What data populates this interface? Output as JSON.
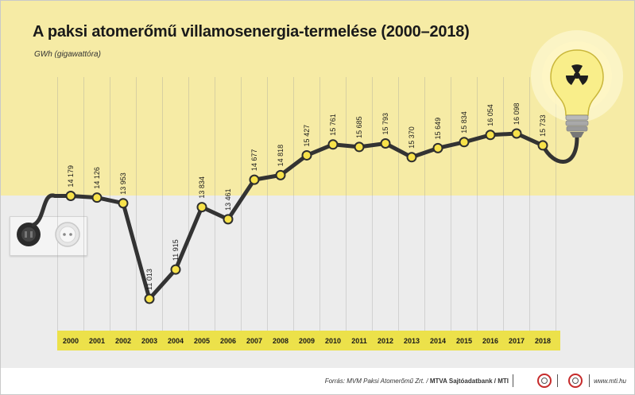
{
  "title": "A paksi atomerőmű villamosenergia-termelése (2000–2018)",
  "unit_label": "GWh (gigawattóra)",
  "footer": {
    "source_prefix": "Forrás: MVM Paksi Atomerőmű Zrt. / ",
    "source_bold": "MTVA Sajtóadatbank / MTI",
    "website": "www.mti.hu"
  },
  "colors": {
    "background_top": "#f6eba5",
    "background_bottom": "#ececec",
    "line": "#333333",
    "marker_fill": "#f7e24a",
    "year_band": "#ece14a"
  },
  "icons": [
    "power-plug-icon",
    "wall-socket-icon",
    "light-bulb-icon",
    "radiation-icon"
  ],
  "chart_data": {
    "type": "line",
    "categories": [
      "2000",
      "2001",
      "2002",
      "2003",
      "2004",
      "2005",
      "2006",
      "2007",
      "2008",
      "2009",
      "2010",
      "2011",
      "2012",
      "2013",
      "2014",
      "2015",
      "2016",
      "2017",
      "2018"
    ],
    "values": [
      14179,
      14126,
      13953,
      11013,
      11915,
      13834,
      13461,
      14677,
      14818,
      15427,
      15761,
      15685,
      15793,
      15370,
      15649,
      15834,
      16054,
      16098,
      15733
    ],
    "value_labels": [
      "14 179",
      "14 126",
      "13 953",
      "11 013",
      "11 915",
      "13 834",
      "13 461",
      "14 677",
      "14 818",
      "15 427",
      "15 761",
      "15 685",
      "15 793",
      "15 370",
      "15 649",
      "15 834",
      "16 054",
      "16 098",
      "15 733"
    ],
    "title": "A paksi atomerőmű villamosenergia-termelése (2000–2018)",
    "ylabel": "GWh (gigawattóra)",
    "xlabel": "",
    "grid": "vertical",
    "legend": "none"
  }
}
